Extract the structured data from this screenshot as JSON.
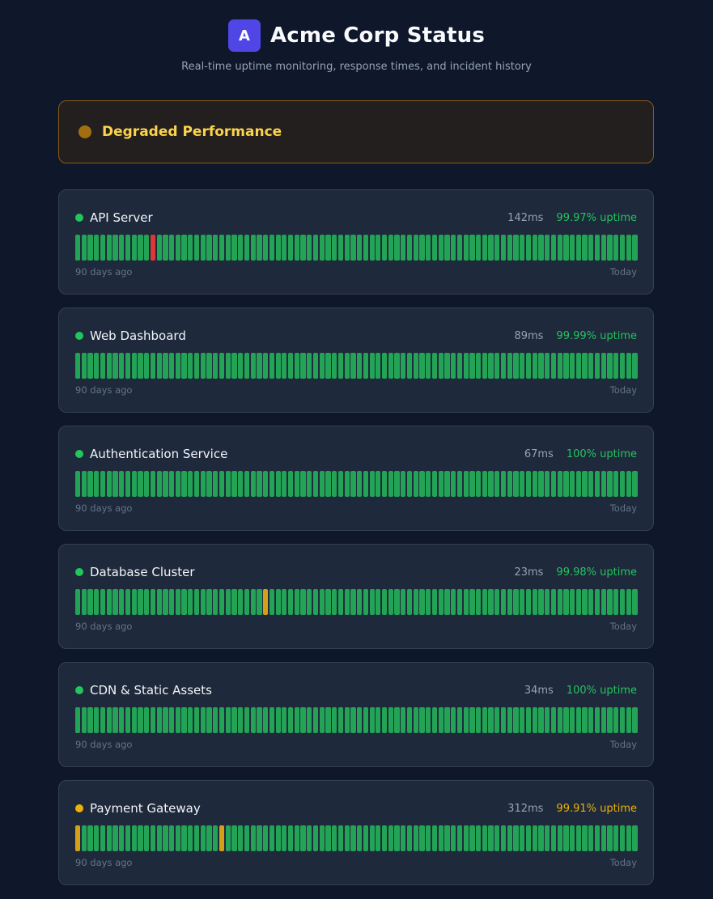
{
  "header": {
    "logo_letter": "A",
    "title": "Acme Corp Status",
    "subtitle": "Real-time uptime monitoring, response times, and incident history"
  },
  "banner": {
    "text": "Degraded Performance",
    "color": "#fbd34d"
  },
  "colors": {
    "operational": "#22c55e",
    "degraded": "#eab308",
    "bar_up": "#22a355",
    "bar_down": "#dc3838",
    "bar_degraded": "#d4a017"
  },
  "services": [
    {
      "name": "API Server",
      "status": "operational",
      "response": "142ms",
      "uptime": "99.97% uptime",
      "days": 90,
      "incidents": [
        {
          "day": 12,
          "type": "down"
        }
      ],
      "left_label": "90 days ago",
      "right_label": "Today"
    },
    {
      "name": "Web Dashboard",
      "status": "operational",
      "response": "89ms",
      "uptime": "99.99% uptime",
      "days": 90,
      "incidents": [],
      "left_label": "90 days ago",
      "right_label": "Today"
    },
    {
      "name": "Authentication Service",
      "status": "operational",
      "response": "67ms",
      "uptime": "100% uptime",
      "days": 90,
      "incidents": [],
      "left_label": "90 days ago",
      "right_label": "Today"
    },
    {
      "name": "Database Cluster",
      "status": "operational",
      "response": "23ms",
      "uptime": "99.98% uptime",
      "days": 90,
      "incidents": [
        {
          "day": 30,
          "type": "degraded"
        }
      ],
      "left_label": "90 days ago",
      "right_label": "Today"
    },
    {
      "name": "CDN & Static Assets",
      "status": "operational",
      "response": "34ms",
      "uptime": "100% uptime",
      "days": 90,
      "incidents": [],
      "left_label": "90 days ago",
      "right_label": "Today"
    },
    {
      "name": "Payment Gateway",
      "status": "degraded",
      "response": "312ms",
      "uptime": "99.91% uptime",
      "days": 90,
      "incidents": [
        {
          "day": 0,
          "type": "degraded"
        },
        {
          "day": 23,
          "type": "degraded"
        }
      ],
      "left_label": "90 days ago",
      "right_label": "Today"
    }
  ]
}
